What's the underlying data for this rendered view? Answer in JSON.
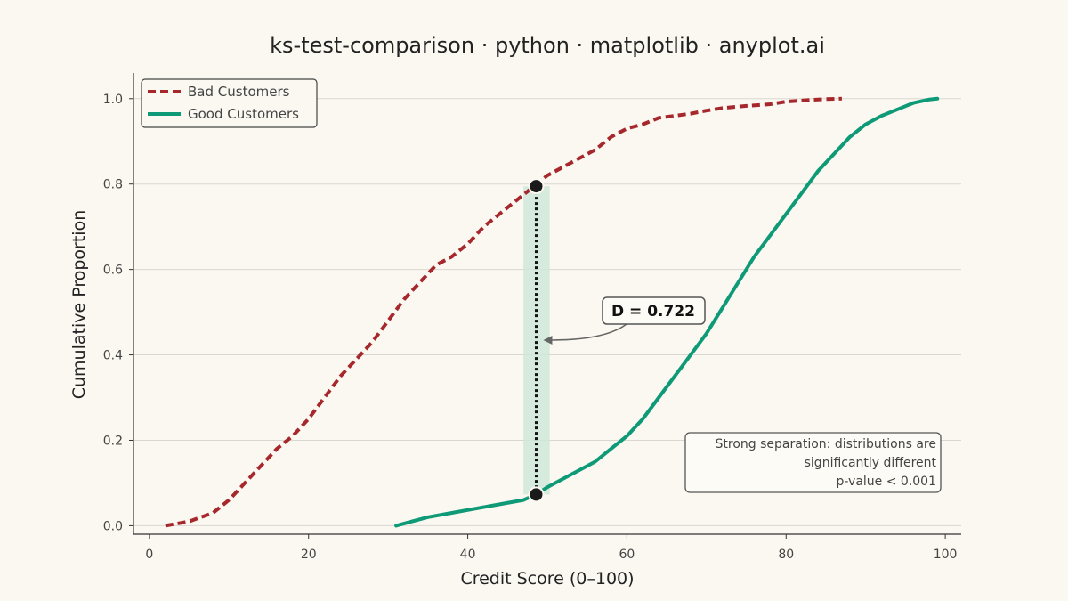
{
  "chart_data": {
    "type": "line",
    "title": "ks-test-comparison · python · matplotlib · anyplot.ai",
    "xlabel": "Credit Score (0–100)",
    "ylabel": "Cumulative Proportion",
    "xlim": [
      -2,
      102
    ],
    "ylim": [
      -0.02,
      1.06
    ],
    "xticks": [
      0,
      20,
      40,
      60,
      80,
      100
    ],
    "xtick_labels": [
      "0",
      "20",
      "40",
      "60",
      "80",
      "100"
    ],
    "yticks": [
      0.0,
      0.2,
      0.4,
      0.6,
      0.8,
      1.0
    ],
    "ytick_labels": [
      "0.0",
      "0.2",
      "0.4",
      "0.6",
      "0.8",
      "1.0"
    ],
    "grid": "horizontal",
    "legend_position": "top-left",
    "series": [
      {
        "name": "Bad Customers",
        "color": "#a7282c",
        "style": "dashed",
        "x": [
          2,
          5,
          8,
          10,
          12,
          14,
          16,
          18,
          20,
          22,
          24,
          26,
          28,
          30,
          32,
          34,
          36,
          38,
          40,
          42,
          44,
          46,
          48,
          50,
          52,
          54,
          56,
          58,
          60,
          62,
          64,
          66,
          68,
          70,
          72,
          75,
          78,
          80,
          83,
          85,
          87
        ],
        "y": [
          0.0,
          0.01,
          0.03,
          0.06,
          0.1,
          0.14,
          0.18,
          0.21,
          0.25,
          0.3,
          0.35,
          0.39,
          0.43,
          0.48,
          0.53,
          0.57,
          0.61,
          0.63,
          0.66,
          0.7,
          0.73,
          0.76,
          0.79,
          0.82,
          0.84,
          0.86,
          0.88,
          0.91,
          0.93,
          0.94,
          0.955,
          0.96,
          0.965,
          0.972,
          0.978,
          0.983,
          0.987,
          0.993,
          0.997,
          0.999,
          1.0
        ]
      },
      {
        "name": "Good Customers",
        "color": "#0f9a77",
        "style": "solid",
        "x": [
          31,
          33,
          35,
          38,
          41,
          44,
          47,
          48.6,
          50,
          52,
          54,
          56,
          58,
          60,
          62,
          64,
          66,
          68,
          70,
          72,
          74,
          76,
          78,
          80,
          82,
          84,
          86,
          88,
          90,
          92,
          94,
          96,
          98,
          99
        ],
        "y": [
          0.0,
          0.01,
          0.02,
          0.03,
          0.04,
          0.05,
          0.06,
          0.073,
          0.09,
          0.11,
          0.13,
          0.15,
          0.18,
          0.21,
          0.25,
          0.3,
          0.35,
          0.4,
          0.45,
          0.51,
          0.57,
          0.63,
          0.68,
          0.73,
          0.78,
          0.83,
          0.87,
          0.91,
          0.94,
          0.96,
          0.975,
          0.99,
          0.998,
          1.0
        ]
      }
    ],
    "ks_statistic": {
      "label": "D = 0.722",
      "x": 48.6,
      "y_top": 0.795,
      "y_bottom": 0.073,
      "band_x": [
        47,
        50.3
      ],
      "band_color": "#cfe9d9"
    },
    "annotation": {
      "lines": [
        "Strong separation: distributions are",
        "significantly different",
        "p-value < 0.001"
      ]
    }
  }
}
